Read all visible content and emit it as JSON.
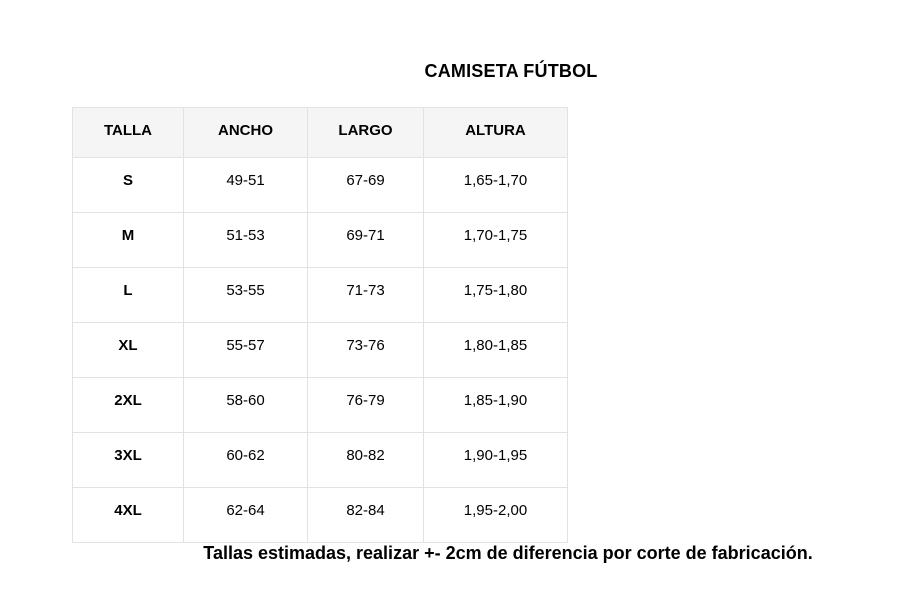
{
  "page": {
    "title": "CAMISETA FÚTBOL",
    "footer_note": "Tallas estimadas, realizar +- 2cm de diferencia por corte de fabricación."
  },
  "size_table": {
    "headers": [
      "TALLA",
      "ANCHO",
      "LARGO",
      "ALTURA"
    ],
    "rows": [
      {
        "talla": "S",
        "ancho": "49-51",
        "largo": "67-69",
        "altura": "1,65-1,70"
      },
      {
        "talla": "M",
        "ancho": "51-53",
        "largo": "69-71",
        "altura": "1,70-1,75"
      },
      {
        "talla": "L",
        "ancho": "53-55",
        "largo": "71-73",
        "altura": "1,75-1,80"
      },
      {
        "talla": "XL",
        "ancho": "55-57",
        "largo": "73-76",
        "altura": "1,80-1,85"
      },
      {
        "talla": "2XL",
        "ancho": "58-60",
        "largo": "76-79",
        "altura": "1,85-1,90"
      },
      {
        "talla": "3XL",
        "ancho": "60-62",
        "largo": "80-82",
        "altura": "1,90-1,95"
      },
      {
        "talla": "4XL",
        "ancho": "62-64",
        "largo": "82-84",
        "altura": "1,95-2,00"
      }
    ],
    "colors": {
      "header_background": "#f5f5f5",
      "border": "#e2e2e2",
      "text": "#000000",
      "page_background": "#ffffff"
    }
  }
}
